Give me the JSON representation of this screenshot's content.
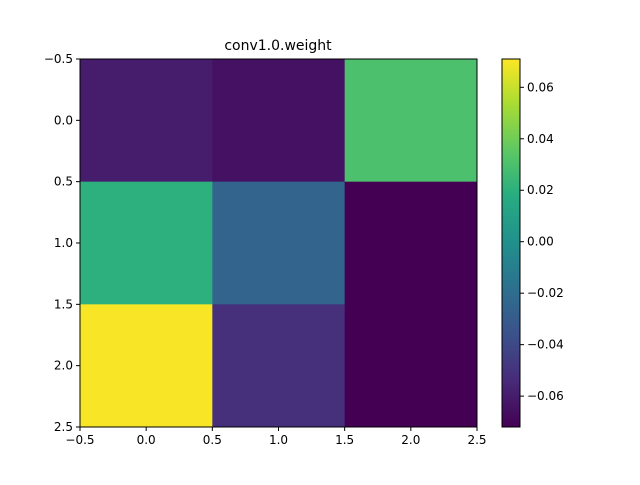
{
  "chart_data": {
    "type": "heatmap",
    "title": "conv1.0.weight",
    "xlabel": "",
    "ylabel": "",
    "x_ticks": [
      "−0.5",
      "0.0",
      "0.5",
      "1.0",
      "1.5",
      "2.0",
      "2.5"
    ],
    "y_ticks": [
      "−0.5",
      "0.0",
      "0.5",
      "1.0",
      "1.5",
      "2.0",
      "2.5"
    ],
    "xlim": [
      -0.5,
      2.5
    ],
    "ylim": [
      2.5,
      -0.5
    ],
    "grid": false,
    "colormap": "viridis",
    "values": [
      [
        -0.06,
        -0.065,
        0.03
      ],
      [
        0.02,
        -0.025,
        -0.072
      ],
      [
        0.07,
        -0.052,
        -0.072
      ]
    ],
    "colorbar": {
      "vmin": -0.072,
      "vmax": 0.071,
      "tick_values": [
        -0.06,
        -0.04,
        -0.02,
        0.0,
        0.02,
        0.04,
        0.06
      ],
      "tick_labels": [
        "−0.06",
        "−0.04",
        "−0.02",
        "0.00",
        "0.02",
        "0.04",
        "0.06"
      ]
    }
  }
}
